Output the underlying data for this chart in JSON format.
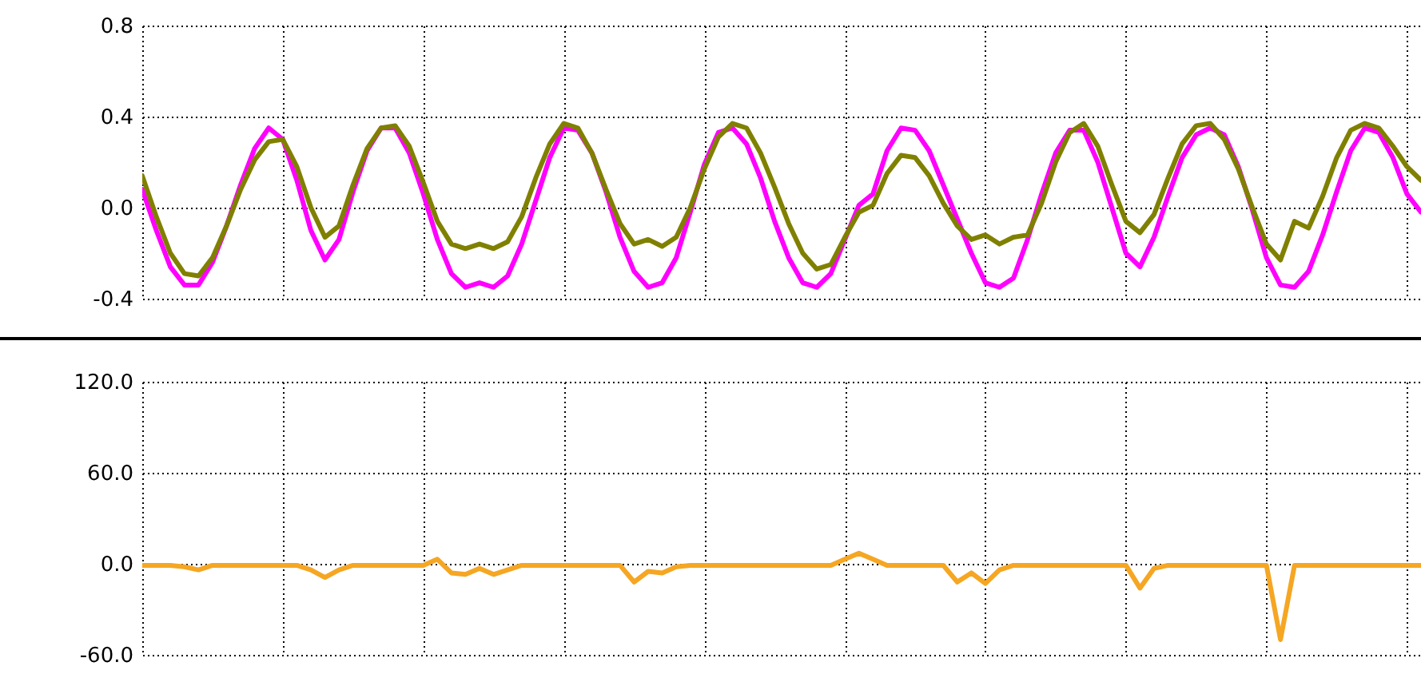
{
  "chart_data": [
    {
      "type": "line",
      "categories": [
        null,
        null,
        null,
        null,
        null,
        null,
        null,
        null,
        null,
        null,
        null,
        null,
        null,
        null,
        null,
        null,
        null,
        null,
        null,
        null,
        null,
        null,
        null,
        null,
        null,
        null,
        null,
        null,
        null,
        null,
        null,
        null,
        null,
        null,
        null,
        null,
        null,
        null,
        null,
        null,
        null,
        null,
        null,
        null,
        null,
        null,
        null,
        null,
        null,
        null,
        null,
        null,
        null,
        null,
        null,
        null,
        null,
        null,
        null,
        null,
        null,
        null,
        null,
        null,
        null,
        null,
        null,
        null,
        null,
        null,
        null,
        null,
        null,
        null,
        null,
        null,
        null,
        null,
        null,
        null,
        null,
        null,
        null,
        null,
        null,
        null,
        null,
        null,
        null,
        null,
        null,
        null
      ],
      "series": [
        {
          "color": "#ff00ff",
          "values": [
            0.08,
            -0.1,
            -0.26,
            -0.34,
            -0.34,
            -0.24,
            -0.08,
            0.1,
            0.26,
            0.35,
            0.3,
            0.12,
            -0.1,
            -0.23,
            -0.14,
            0.07,
            0.25,
            0.35,
            0.35,
            0.24,
            0.06,
            -0.14,
            -0.29,
            -0.35,
            -0.33,
            -0.35,
            -0.3,
            -0.16,
            0.03,
            0.22,
            0.35,
            0.34,
            0.24,
            0.07,
            -0.13,
            -0.28,
            -0.35,
            -0.33,
            -0.22,
            -0.02,
            0.19,
            0.33,
            0.35,
            0.28,
            0.13,
            -0.06,
            -0.22,
            -0.33,
            -0.35,
            -0.29,
            -0.14,
            0.01,
            0.06,
            0.25,
            0.35,
            0.34,
            0.25,
            0.1,
            -0.05,
            -0.2,
            -0.33,
            -0.35,
            -0.31,
            -0.14,
            0.06,
            0.24,
            0.34,
            0.34,
            0.2,
            0.0,
            -0.2,
            -0.26,
            -0.13,
            0.05,
            0.22,
            0.32,
            0.35,
            0.32,
            0.18,
            -0.01,
            -0.22,
            -0.34,
            -0.35,
            -0.28,
            -0.12,
            0.07,
            0.25,
            0.35,
            0.33,
            0.22,
            0.06,
            -0.02
          ]
        },
        {
          "color": "#808000",
          "values": [
            0.14,
            -0.04,
            -0.2,
            -0.29,
            -0.3,
            -0.22,
            -0.08,
            0.08,
            0.21,
            0.29,
            0.3,
            0.18,
            0.0,
            -0.13,
            -0.08,
            0.1,
            0.26,
            0.35,
            0.36,
            0.27,
            0.11,
            -0.06,
            -0.16,
            -0.18,
            -0.16,
            -0.18,
            -0.15,
            -0.04,
            0.13,
            0.28,
            0.37,
            0.35,
            0.24,
            0.08,
            -0.07,
            -0.16,
            -0.14,
            -0.17,
            -0.13,
            0.0,
            0.17,
            0.31,
            0.37,
            0.35,
            0.24,
            0.09,
            -0.07,
            -0.2,
            -0.27,
            -0.25,
            -0.13,
            -0.02,
            0.01,
            0.15,
            0.23,
            0.22,
            0.14,
            0.02,
            -0.08,
            -0.14,
            -0.12,
            -0.16,
            -0.13,
            -0.12,
            0.02,
            0.2,
            0.33,
            0.37,
            0.27,
            0.1,
            -0.06,
            -0.11,
            -0.03,
            0.13,
            0.28,
            0.36,
            0.37,
            0.3,
            0.17,
            0.0,
            -0.16,
            -0.23,
            -0.06,
            -0.09,
            0.05,
            0.22,
            0.34,
            0.37,
            0.35,
            0.27,
            0.18,
            0.12
          ]
        }
      ],
      "ylim": [
        -0.4,
        0.8
      ],
      "yticks": [
        -0.4,
        {
          "value": 0,
          "label": "0.0"
        },
        0.4,
        0.8
      ],
      "grid": true,
      "tick_labels": "y"
    },
    {
      "type": "line",
      "categories": [
        null,
        null,
        null,
        null,
        null,
        null,
        null,
        null,
        null,
        null,
        null,
        null,
        null,
        null,
        null,
        null,
        null,
        null,
        null,
        null,
        null,
        null,
        null,
        null,
        null,
        null,
        null,
        null,
        null,
        null,
        null,
        null,
        null,
        null,
        null,
        null,
        null,
        null,
        null,
        null,
        null,
        null,
        null,
        null,
        null,
        null,
        null,
        null,
        null,
        null,
        null,
        null,
        null,
        null,
        null,
        null,
        null,
        null,
        null,
        null,
        null,
        null,
        null,
        null,
        null,
        null,
        null,
        null,
        null,
        null,
        null,
        null,
        null,
        null,
        null,
        null,
        null,
        null,
        null,
        null,
        null,
        null,
        null,
        null,
        null,
        null,
        null,
        null,
        null,
        null,
        null,
        null
      ],
      "series": [
        {
          "color": "#f5a623",
          "values": [
            -1,
            -1,
            -1,
            -2,
            -4,
            -1,
            -1,
            -1,
            -1,
            -1,
            -1,
            -1,
            -4,
            -9,
            -4,
            -1,
            -1,
            -1,
            -1,
            -1,
            -1,
            3,
            -6,
            -7,
            -3,
            -7,
            -4,
            -1,
            -1,
            -1,
            -1,
            -1,
            -1,
            -1,
            -1,
            -12,
            -5,
            -6,
            -2,
            -1,
            -1,
            -1,
            -1,
            -1,
            -1,
            -1,
            -1,
            -1,
            -1,
            -1,
            3,
            7,
            3,
            -1,
            -1,
            -1,
            -1,
            -1,
            -12,
            -6,
            -13,
            -4,
            -1,
            -1,
            -1,
            -1,
            -1,
            -1,
            -1,
            -1,
            -1,
            -16,
            -3,
            -1,
            -1,
            -1,
            -1,
            -1,
            -1,
            -1,
            -1,
            -50,
            -1,
            -1,
            -1,
            -1,
            -1,
            -1,
            -1,
            -1,
            -1,
            -1
          ]
        }
      ],
      "ylim": [
        -60,
        120
      ],
      "yticks": [
        {
          "value": -60,
          "label": "-60.0"
        },
        {
          "value": 0,
          "label": "0.0"
        },
        {
          "value": 60,
          "label": "60.0"
        },
        {
          "value": 120,
          "label": "120.0"
        }
      ],
      "grid": true,
      "tick_labels": "y"
    }
  ]
}
